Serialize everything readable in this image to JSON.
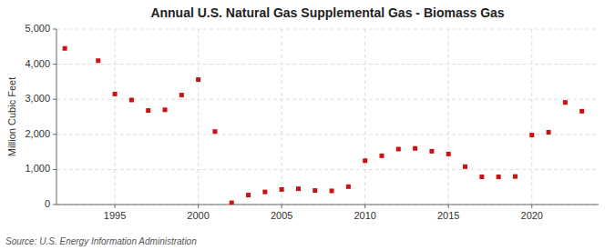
{
  "chart_data": {
    "type": "scatter",
    "title": "Annual U.S. Natural Gas Supplemental Gas - Biomass Gas",
    "ylabel": "Million Cubic Feet",
    "annotations": [
      "Source: U.S. Energy Information Administration"
    ],
    "x": [
      1992,
      1994,
      1995,
      1996,
      1997,
      1998,
      1999,
      2000,
      2001,
      2002,
      2003,
      2004,
      2005,
      2006,
      2007,
      2008,
      2009,
      2010,
      2011,
      2012,
      2013,
      2014,
      2015,
      2016,
      2017,
      2018,
      2019,
      2020,
      2021,
      2022,
      2023
    ],
    "values": [
      4450,
      4100,
      3150,
      2980,
      2680,
      2700,
      3120,
      3560,
      2080,
      50,
      270,
      360,
      430,
      450,
      400,
      390,
      510,
      1250,
      1390,
      1580,
      1600,
      1520,
      1440,
      1080,
      790,
      790,
      800,
      1980,
      2060,
      2910,
      2660
    ],
    "color": "#cc1111",
    "marker": "square",
    "grid": true,
    "xlim": [
      1991.5,
      2024
    ],
    "xticks": [
      1995,
      2000,
      2005,
      2010,
      2015,
      2020
    ],
    "ylim": [
      0,
      5000
    ],
    "yticks": [
      0,
      {
        "value": 1000,
        "label": "1,000"
      },
      {
        "value": 2000,
        "label": "2,000"
      },
      {
        "value": 3000,
        "label": "3,000"
      },
      {
        "value": 4000,
        "label": "4,000"
      },
      {
        "value": 5000,
        "label": "5,000"
      }
    ]
  }
}
